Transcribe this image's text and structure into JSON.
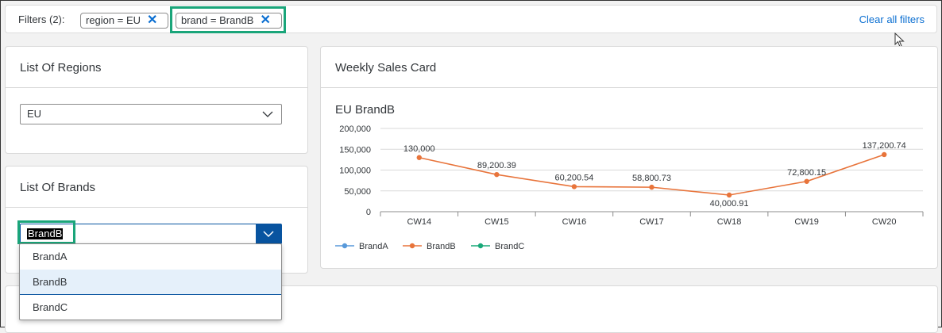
{
  "filterbar": {
    "label": "Filters (2):",
    "chips": [
      {
        "text": "region = EU",
        "remove_icon": "close-icon"
      },
      {
        "text": "brand = BrandB",
        "remove_icon": "close-icon"
      }
    ],
    "clear_all": "Clear all filters"
  },
  "regions_card": {
    "title": "List Of Regions",
    "selected": "EU"
  },
  "brands_card": {
    "title": "List Of Brands",
    "input_value": "BrandB",
    "options": [
      "BrandA",
      "BrandB",
      "BrandC"
    ],
    "selected_option": "BrandB"
  },
  "weekly_card": {
    "title": "Weekly Sales Card"
  },
  "colors": {
    "accent": "#0a6ed1",
    "highlight": "#1aa57a",
    "brandA": "#5899da",
    "brandB": "#e8743b",
    "brandC": "#19a979"
  },
  "chart_data": {
    "type": "line",
    "title": "EU BrandB",
    "categories": [
      "CW14",
      "CW15",
      "CW16",
      "CW17",
      "CW18",
      "CW19",
      "CW20"
    ],
    "series": [
      {
        "name": "BrandB",
        "values": [
          130000,
          89200.39,
          60200.54,
          58800.73,
          40000.91,
          72800.15,
          137200.74
        ]
      }
    ],
    "data_labels": [
      "130,000",
      "89,200.39",
      "60,200.54",
      "58,800.73",
      "40,000.91",
      "72,800.15",
      "137,200.74"
    ],
    "y_ticks": [
      "0",
      "50,000",
      "100,000",
      "150,000",
      "200,000"
    ],
    "ylim": [
      0,
      200000
    ],
    "legend": [
      "BrandA",
      "BrandB",
      "BrandC"
    ],
    "legend_position": "bottom-left",
    "grid": true
  }
}
